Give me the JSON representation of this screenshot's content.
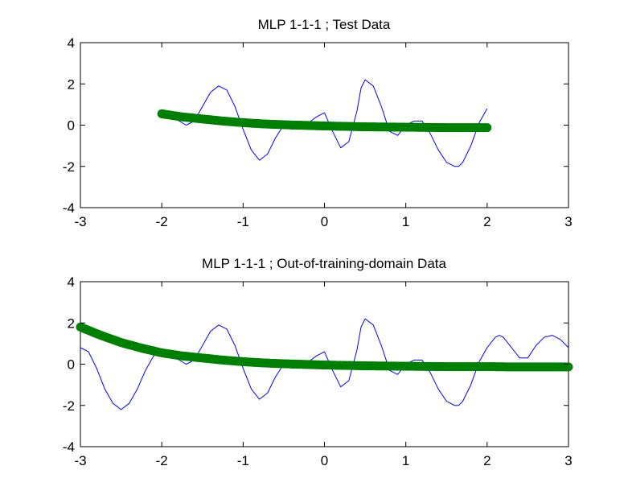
{
  "colors": {
    "background": "#ffffff",
    "axes": "#000000",
    "reference_line": "#0000ff",
    "model_output": "#008000"
  },
  "chart_data": [
    {
      "type": "line",
      "title": "MLP 1-1-1 ; Test Data",
      "xlabel": "",
      "ylabel": "",
      "xlim": [
        -3,
        3
      ],
      "ylim": [
        -4,
        4
      ],
      "xticks": [
        "-3",
        "-2",
        "-1",
        "0",
        "1",
        "2",
        "3"
      ],
      "yticks": [
        "-4",
        "-2",
        "0",
        "2",
        "4"
      ],
      "grid": false,
      "series": [
        {
          "style": "line",
          "color": "#0000ff",
          "x": [
            -2.0,
            -1.85,
            -1.7,
            -1.6,
            -1.5,
            -1.4,
            -1.3,
            -1.2,
            -1.1,
            -1.0,
            -0.9,
            -0.8,
            -0.7,
            -0.6,
            -0.5,
            -0.4,
            -0.3,
            -0.2,
            -0.1,
            0.0,
            0.1,
            0.2,
            0.3,
            0.4,
            0.45,
            0.5,
            0.6,
            0.7,
            0.8,
            0.9,
            1.0,
            1.1,
            1.2,
            1.3,
            1.4,
            1.5,
            1.6,
            1.65,
            1.7,
            1.8,
            1.9,
            2.0
          ],
          "y": [
            0.6,
            0.35,
            0.0,
            0.2,
            0.9,
            1.6,
            1.9,
            1.7,
            0.9,
            -0.2,
            -1.2,
            -1.7,
            -1.4,
            -0.6,
            0.0,
            -0.2,
            -0.1,
            0.1,
            0.4,
            0.6,
            -0.3,
            -1.1,
            -0.8,
            0.7,
            1.8,
            2.2,
            1.9,
            0.9,
            -0.3,
            -0.5,
            0.0,
            0.2,
            0.2,
            -0.4,
            -1.2,
            -1.8,
            -2.0,
            -2.0,
            -1.8,
            -1.0,
            0.1,
            0.8
          ]
        },
        {
          "style": "markers",
          "color": "#008000",
          "x": [
            -2.0,
            -1.75,
            -1.5,
            -1.25,
            -1.0,
            -0.75,
            -0.5,
            -0.25,
            0.0,
            0.25,
            0.5,
            0.75,
            1.0,
            1.25,
            1.5,
            1.75,
            2.0
          ],
          "y": [
            0.55,
            0.4,
            0.3,
            0.2,
            0.12,
            0.06,
            0.02,
            -0.01,
            -0.04,
            -0.06,
            -0.08,
            -0.09,
            -0.1,
            -0.11,
            -0.12,
            -0.12,
            -0.12
          ]
        }
      ]
    },
    {
      "type": "line",
      "title": "MLP 1-1-1 ; Out-of-training-domain Data",
      "xlabel": "",
      "ylabel": "",
      "xlim": [
        -3,
        3
      ],
      "ylim": [
        -4,
        4
      ],
      "xticks": [
        "-3",
        "-2",
        "-1",
        "0",
        "1",
        "2",
        "3"
      ],
      "yticks": [
        "-4",
        "-2",
        "0",
        "2",
        "4"
      ],
      "grid": false,
      "series": [
        {
          "style": "line",
          "color": "#0000ff",
          "x": [
            -3.0,
            -2.9,
            -2.8,
            -2.7,
            -2.6,
            -2.5,
            -2.4,
            -2.3,
            -2.2,
            -2.1,
            -2.0,
            -1.85,
            -1.7,
            -1.6,
            -1.5,
            -1.4,
            -1.3,
            -1.2,
            -1.1,
            -1.0,
            -0.9,
            -0.8,
            -0.7,
            -0.6,
            -0.5,
            -0.4,
            -0.3,
            -0.2,
            -0.1,
            0.0,
            0.1,
            0.2,
            0.3,
            0.4,
            0.45,
            0.5,
            0.6,
            0.7,
            0.8,
            0.9,
            1.0,
            1.1,
            1.2,
            1.3,
            1.4,
            1.5,
            1.6,
            1.65,
            1.7,
            1.8,
            1.9,
            2.0,
            2.1,
            2.15,
            2.2,
            2.3,
            2.4,
            2.5,
            2.6,
            2.7,
            2.8,
            2.9,
            3.0
          ],
          "y": [
            0.8,
            0.6,
            -0.2,
            -1.2,
            -1.9,
            -2.2,
            -1.9,
            -1.2,
            -0.3,
            0.4,
            0.6,
            0.35,
            0.0,
            0.2,
            0.9,
            1.6,
            1.9,
            1.7,
            0.9,
            -0.2,
            -1.2,
            -1.7,
            -1.4,
            -0.6,
            0.0,
            -0.2,
            -0.1,
            0.1,
            0.4,
            0.6,
            -0.3,
            -1.1,
            -0.8,
            0.7,
            1.8,
            2.2,
            1.9,
            0.9,
            -0.3,
            -0.5,
            0.0,
            0.2,
            0.2,
            -0.4,
            -1.2,
            -1.8,
            -2.0,
            -2.0,
            -1.8,
            -1.0,
            0.1,
            0.8,
            1.3,
            1.4,
            1.3,
            0.8,
            0.3,
            0.3,
            0.9,
            1.3,
            1.4,
            1.2,
            0.8
          ]
        },
        {
          "style": "markers",
          "color": "#008000",
          "x": [
            -3.0,
            -2.75,
            -2.5,
            -2.25,
            -2.0,
            -1.75,
            -1.5,
            -1.25,
            -1.0,
            -0.75,
            -0.5,
            -0.25,
            0.0,
            0.25,
            0.5,
            0.75,
            1.0,
            1.25,
            1.5,
            1.75,
            2.0,
            2.25,
            2.5,
            2.75,
            3.0
          ],
          "y": [
            1.8,
            1.4,
            1.05,
            0.78,
            0.55,
            0.4,
            0.3,
            0.2,
            0.12,
            0.06,
            0.02,
            -0.01,
            -0.04,
            -0.06,
            -0.08,
            -0.09,
            -0.1,
            -0.11,
            -0.12,
            -0.12,
            -0.12,
            -0.13,
            -0.13,
            -0.13,
            -0.13
          ]
        }
      ]
    }
  ]
}
